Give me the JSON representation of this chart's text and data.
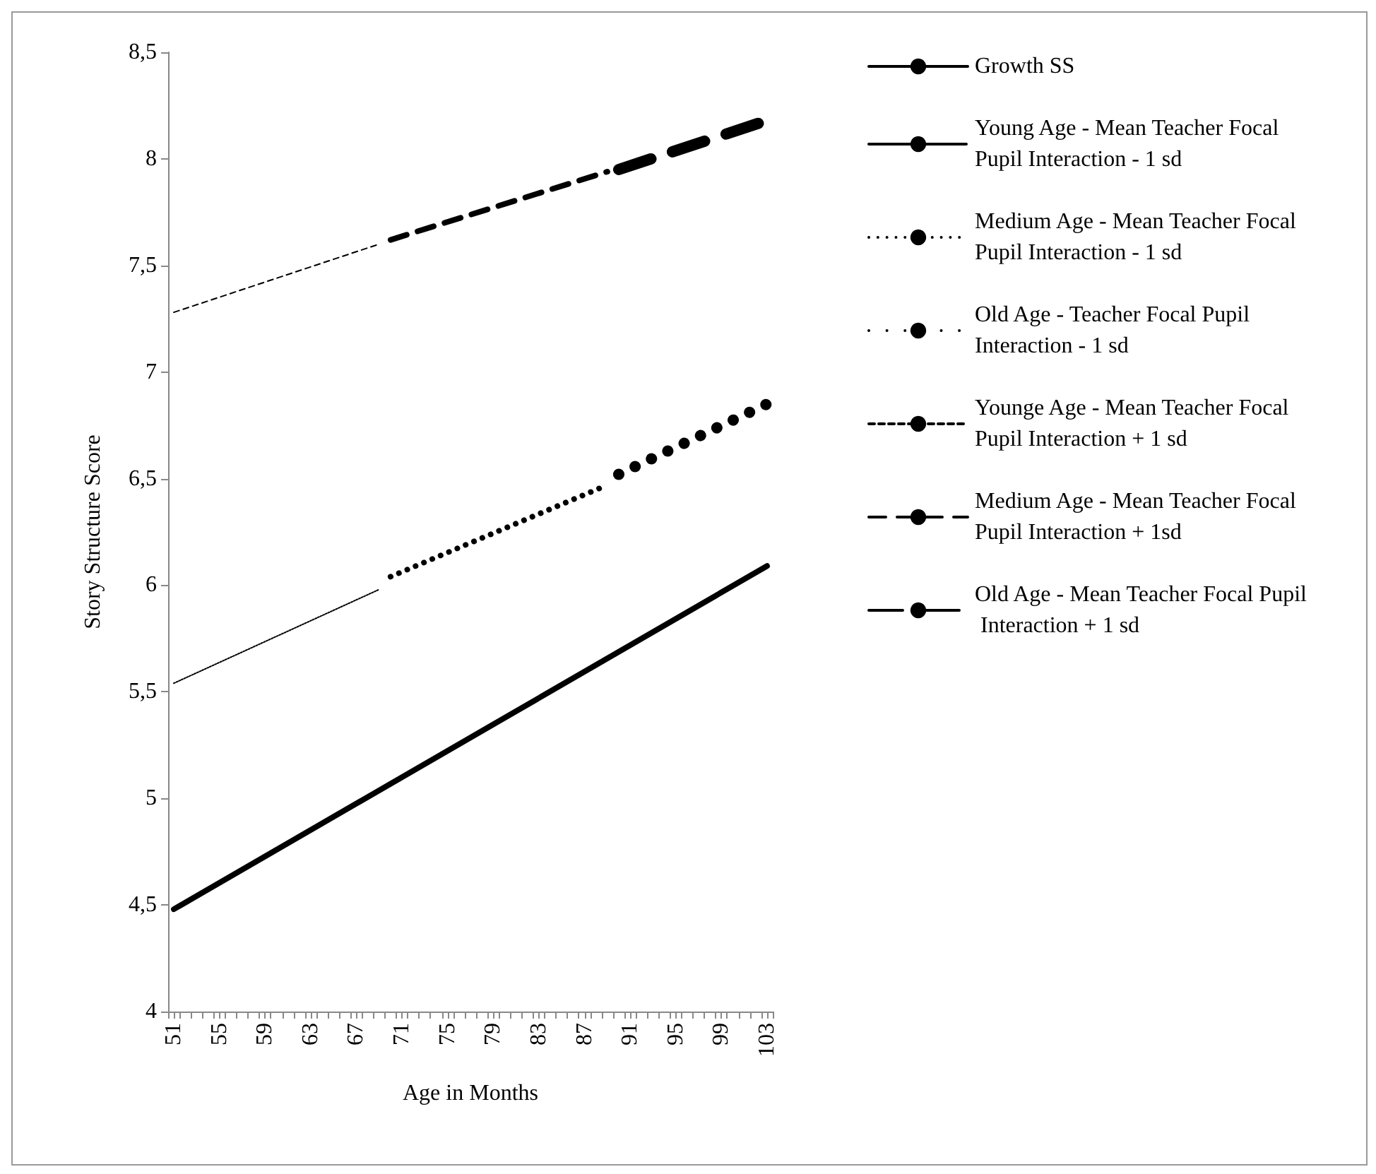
{
  "chart_data": {
    "type": "line",
    "xlabel": "Age in Months",
    "ylabel": "Story Structure Score",
    "xlim": [
      50.5,
      103.5
    ],
    "xticks": [
      51,
      55,
      59,
      63,
      67,
      71,
      75,
      79,
      83,
      87,
      91,
      95,
      99,
      103,
      {
        "value": 50.5,
        "label": null
      },
      {
        "value": 51.5,
        "label": null
      },
      {
        "value": 52.5,
        "label": null
      },
      {
        "value": 53.5,
        "label": null
      },
      {
        "value": 54.5,
        "label": null
      },
      {
        "value": 55.5,
        "label": null
      },
      {
        "value": 56.5,
        "label": null
      },
      {
        "value": 57.5,
        "label": null
      },
      {
        "value": 58.5,
        "label": null
      },
      {
        "value": 59.5,
        "label": null
      },
      {
        "value": 60.5,
        "label": null
      },
      {
        "value": 61.5,
        "label": null
      },
      {
        "value": 62.5,
        "label": null
      },
      {
        "value": 63.5,
        "label": null
      },
      {
        "value": 64.5,
        "label": null
      },
      {
        "value": 65.5,
        "label": null
      },
      {
        "value": 66.5,
        "label": null
      },
      {
        "value": 67.5,
        "label": null
      },
      {
        "value": 68.5,
        "label": null
      },
      {
        "value": 69.5,
        "label": null
      },
      {
        "value": 70.5,
        "label": null
      },
      {
        "value": 71.5,
        "label": null
      },
      {
        "value": 72.5,
        "label": null
      },
      {
        "value": 73.5,
        "label": null
      },
      {
        "value": 74.5,
        "label": null
      },
      {
        "value": 75.5,
        "label": null
      },
      {
        "value": 76.5,
        "label": null
      },
      {
        "value": 77.5,
        "label": null
      },
      {
        "value": 78.5,
        "label": null
      },
      {
        "value": 79.5,
        "label": null
      },
      {
        "value": 80.5,
        "label": null
      },
      {
        "value": 81.5,
        "label": null
      },
      {
        "value": 82.5,
        "label": null
      },
      {
        "value": 83.5,
        "label": null
      },
      {
        "value": 84.5,
        "label": null
      },
      {
        "value": 85.5,
        "label": null
      },
      {
        "value": 86.5,
        "label": null
      },
      {
        "value": 87.5,
        "label": null
      },
      {
        "value": 88.5,
        "label": null
      },
      {
        "value": 89.5,
        "label": null
      },
      {
        "value": 90.5,
        "label": null
      },
      {
        "value": 91.5,
        "label": null
      },
      {
        "value": 92.5,
        "label": null
      },
      {
        "value": 93.5,
        "label": null
      },
      {
        "value": 94.5,
        "label": null
      },
      {
        "value": 95.5,
        "label": null
      },
      {
        "value": 96.5,
        "label": null
      },
      {
        "value": 97.5,
        "label": null
      },
      {
        "value": 98.5,
        "label": null
      },
      {
        "value": 99.5,
        "label": null
      },
      {
        "value": 100.5,
        "label": null
      },
      {
        "value": 101.5,
        "label": null
      },
      {
        "value": 102.5,
        "label": null
      },
      {
        "value": 103.5,
        "label": null
      }
    ],
    "ylim": [
      4,
      8.5
    ],
    "yticks": [
      4,
      {
        "value": 4.5,
        "label": "4,5"
      },
      5,
      {
        "value": 5.5,
        "label": "5,5"
      },
      6,
      {
        "value": 6.5,
        "label": "6,5"
      },
      7,
      {
        "value": 7.5,
        "label": "7,5"
      },
      8,
      {
        "value": 8.5,
        "label": "8,5"
      }
    ],
    "grid": false,
    "legend": "right",
    "marker": "none",
    "series": [
      {
        "name": "Growth SS",
        "color": "#000000",
        "line_style": "solid",
        "x": [
          51,
          103
        ],
        "values": [
          4.48,
          6.09
        ]
      },
      {
        "name": "Young Age - Mean Teacher Focal Pupil Interaction - 1 sd",
        "color": "#000000",
        "line_style": "dotted",
        "x": [
          51,
          69
        ],
        "values": [
          5.54,
          5.98
        ]
      },
      {
        "name": "Medium Age - Mean Teacher Focal Pupil Interaction - 1 sd",
        "color": "#000000",
        "line_style": "dotted",
        "x": [
          70,
          89
        ],
        "values": [
          6.04,
          6.47
        ]
      },
      {
        "name": "Old Age - Teacher Focal Pupil Interaction - 1 sd",
        "color": "#000000",
        "line_style": "dotted",
        "x": [
          90,
          103
        ],
        "values": [
          6.52,
          6.85
        ]
      },
      {
        "name": "Younge Age - Mean Teacher Focal Pupil Interaction + 1 sd",
        "color": "#000000",
        "line_style": "dashed",
        "x": [
          51,
          69
        ],
        "values": [
          7.28,
          7.6
        ]
      },
      {
        "name": "Medium Age - Mean Teacher Focal Pupil Interaction + 1sd",
        "color": "#000000",
        "line_style": "dashed",
        "x": [
          70,
          89
        ],
        "values": [
          7.62,
          7.94
        ]
      },
      {
        "name": "Old Age - Mean Teacher Focal Pupil Interaction + 1 sd",
        "color": "#000000",
        "line_style": "dashed",
        "x": [
          90,
          103
        ],
        "values": [
          7.95,
          8.18
        ]
      }
    ]
  }
}
